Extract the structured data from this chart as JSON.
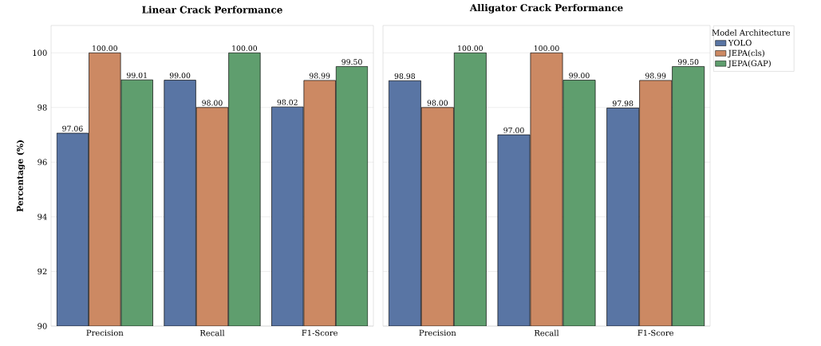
{
  "chart_data": [
    {
      "type": "bar",
      "title": "Linear Crack Performance",
      "ylabel": "Percentage (%)",
      "categories": [
        "Precision",
        "Recall",
        "F1-Score"
      ],
      "ylim": [
        90,
        101
      ],
      "yticks": [
        90,
        92,
        94,
        96,
        98,
        100
      ],
      "grid": "y",
      "series": [
        {
          "color": "#5975a4",
          "values": [
            97.06,
            99.0,
            98.02
          ],
          "value_labels": [
            "97.06",
            "99.00",
            "98.02"
          ]
        },
        {
          "color": "#cc8963",
          "values": [
            100.0,
            98.0,
            98.99
          ],
          "value_labels": [
            "100.00",
            "98.00",
            "98.99"
          ]
        },
        {
          "color": "#5f9e6e",
          "values": [
            99.01,
            100.0,
            99.5
          ],
          "value_labels": [
            "99.01",
            "100.00",
            "99.50"
          ]
        }
      ]
    },
    {
      "type": "bar",
      "title": "Alligator Crack Performance",
      "categories": [
        "Precision",
        "Recall",
        "F1-Score"
      ],
      "ylim": [
        90,
        101
      ],
      "yticks": [
        90,
        92,
        94,
        96,
        98,
        100
      ],
      "grid": "y",
      "tick_labels": "x",
      "legend": "top right",
      "legend_title": "Model Architecture",
      "series": [
        {
          "name": "YOLO",
          "color": "#5975a4",
          "values": [
            98.98,
            97.0,
            97.98
          ],
          "value_labels": [
            "98.98",
            "97.00",
            "97.98"
          ]
        },
        {
          "name": "JEPA(cls)",
          "color": "#cc8963",
          "values": [
            98.0,
            100.0,
            98.99
          ],
          "value_labels": [
            "98.00",
            "100.00",
            "98.99"
          ]
        },
        {
          "name": "JEPA(GAP)",
          "color": "#5f9e6e",
          "values": [
            100.0,
            99.0,
            99.5
          ],
          "value_labels": [
            "100.00",
            "99.00",
            "99.50"
          ]
        }
      ]
    }
  ]
}
